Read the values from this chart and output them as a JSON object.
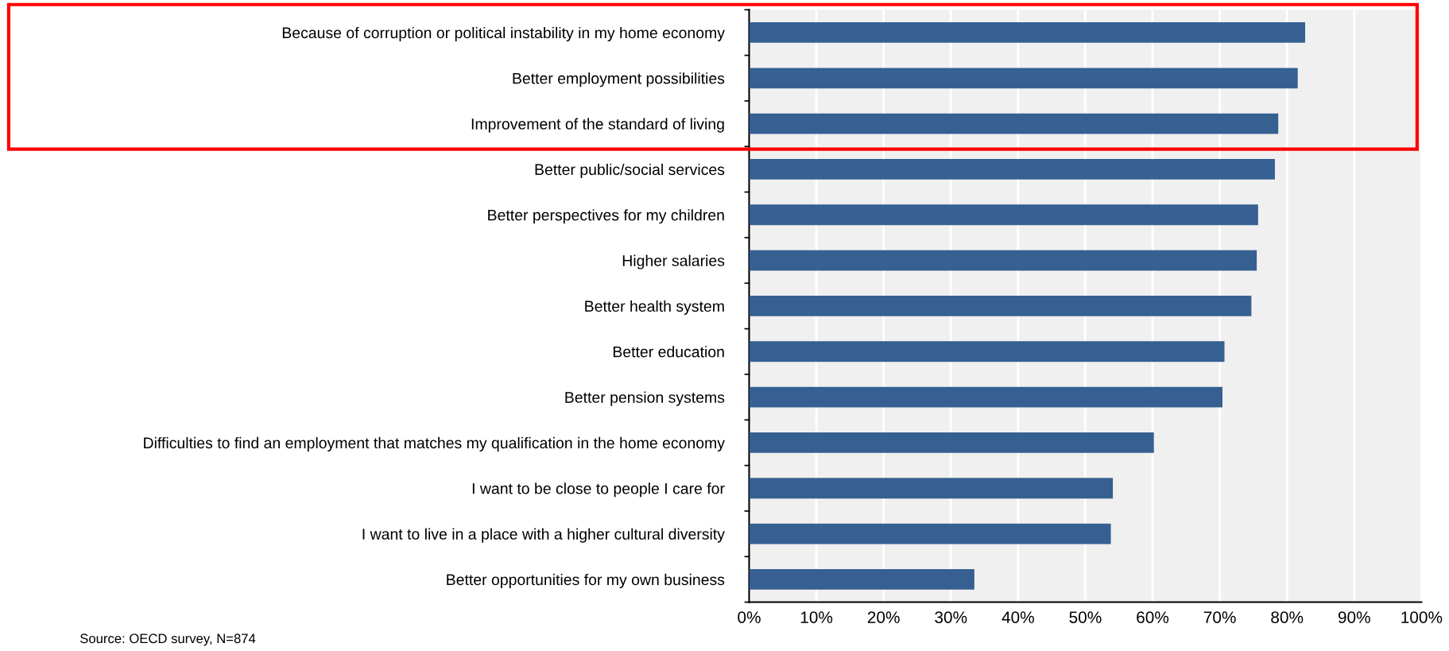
{
  "chart_data": {
    "type": "bar",
    "orientation": "horizontal",
    "categories": [
      "Because of corruption or political instability in my home economy",
      "Better employment possibilities",
      "Improvement of the standard of living",
      "Better public/social services",
      "Better perspectives for my children",
      "Higher salaries",
      "Better health system",
      "Better education",
      "Better pension systems",
      "Difficulties to find an employment that matches my qualification in the home economy",
      "I want to be close to people I care for",
      "I want to live in a place with a higher cultural diversity",
      "Better opportunities for my own business"
    ],
    "values": [
      82.7,
      81.6,
      78.7,
      78.2,
      75.7,
      75.5,
      74.7,
      70.7,
      70.4,
      60.2,
      54.1,
      53.8,
      33.5
    ],
    "color": "#366092",
    "xlim": [
      0,
      100
    ],
    "xticks": [
      {
        "value": 0,
        "label": "0%"
      },
      {
        "value": 10,
        "label": "10%"
      },
      {
        "value": 20,
        "label": "20%"
      },
      {
        "value": 30,
        "label": "30%"
      },
      {
        "value": 40,
        "label": "40%"
      },
      {
        "value": 50,
        "label": "50%"
      },
      {
        "value": 60,
        "label": "60%"
      },
      {
        "value": 70,
        "label": "70%"
      },
      {
        "value": 80,
        "label": "80%"
      },
      {
        "value": 90,
        "label": "90%"
      },
      {
        "value": 100,
        "label": "100%"
      }
    ],
    "grid": "x",
    "annotations": [
      "Source: OECD survey, N=874"
    ]
  }
}
